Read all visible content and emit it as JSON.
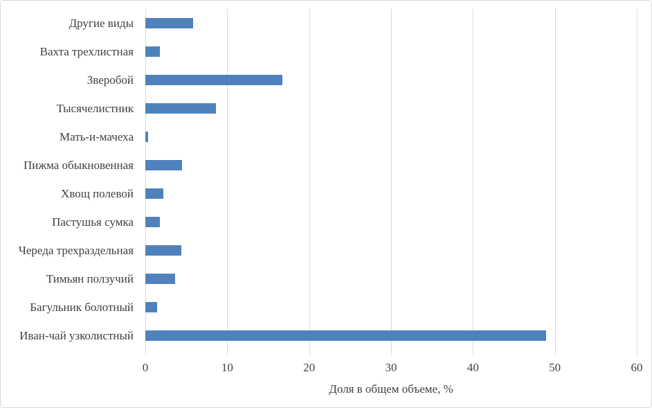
{
  "chart_data": {
    "type": "bar",
    "orientation": "horizontal",
    "categories": [
      "Другие виды",
      "Вахта трехлистная",
      "Зверобой",
      "Тысячелистник",
      "Мать-и-мачеха",
      "Пижма обыкновенная",
      "Хвощ полевой",
      "Пастушья сумка",
      "Череда трехраздельная",
      "Тимьян ползучий",
      "Багульник болотный",
      "Иван-чай узколистный"
    ],
    "values": [
      5.8,
      1.8,
      16.7,
      8.6,
      0.3,
      4.5,
      2.2,
      1.8,
      4.4,
      3.6,
      1.4,
      48.9
    ],
    "title": "",
    "xlabel": "Доля в общем объеме, %",
    "ylabel": "",
    "xlim": [
      0,
      60
    ],
    "xticks": [
      0,
      10,
      20,
      30,
      40,
      50,
      60
    ],
    "xtick_labels": [
      "0",
      "10",
      "20",
      "30",
      "40",
      "50",
      "60"
    ],
    "grid": true,
    "legend": "none",
    "colors": {
      "bar": "#4f81bd",
      "gridline": "#d9d9d9",
      "text": "#404040",
      "frame_border": "#d7d7d7",
      "background": "#ffffff"
    }
  }
}
